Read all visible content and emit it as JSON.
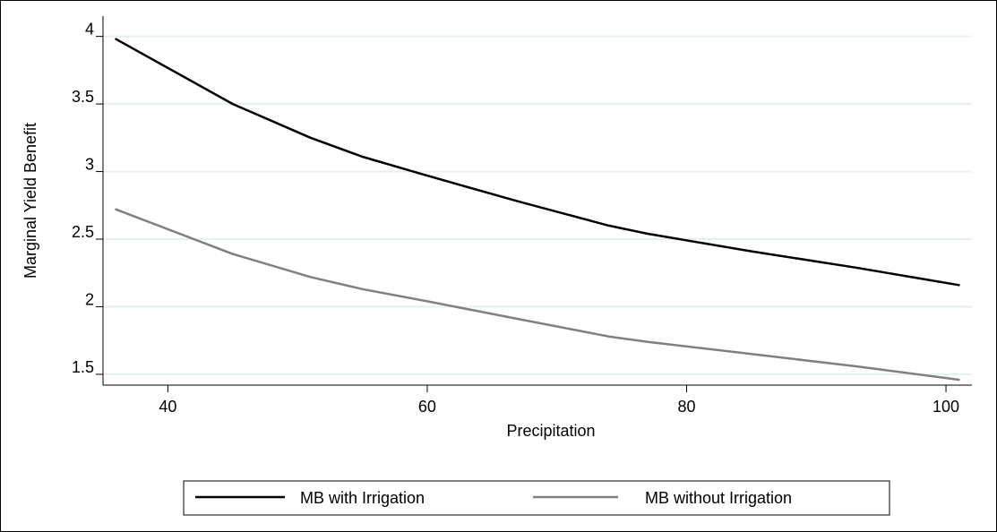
{
  "chart_data": {
    "type": "line",
    "xlabel": "Precipitation",
    "ylabel": "Marginal Yield Benefit",
    "xlim": [
      35,
      102
    ],
    "ylim": [
      1.42,
      4.15
    ],
    "xticks": [
      40,
      60,
      80,
      100
    ],
    "yticks": [
      1.5,
      2,
      2.5,
      3,
      3.5,
      4
    ],
    "xtick_labels": [
      "40",
      "60",
      "80",
      "100"
    ],
    "ytick_labels": [
      "1.5",
      "2",
      "2.5",
      "3",
      "3.5",
      "4"
    ],
    "grid": true,
    "legend_position": "bottom",
    "series": [
      {
        "name": "MB with Irrigation",
        "color": "#000000",
        "x": [
          36,
          45,
          51,
          55,
          60,
          67,
          74,
          77,
          85,
          93,
          101
        ],
        "y": [
          3.98,
          3.5,
          3.25,
          3.11,
          2.97,
          2.78,
          2.6,
          2.54,
          2.41,
          2.29,
          2.16
        ]
      },
      {
        "name": "MB without Irrigation",
        "color": "#808080",
        "x": [
          36,
          45,
          51,
          55,
          60,
          67,
          74,
          77,
          85,
          93,
          101
        ],
        "y": [
          2.72,
          2.39,
          2.22,
          2.13,
          2.04,
          1.91,
          1.78,
          1.74,
          1.65,
          1.56,
          1.46
        ]
      }
    ]
  }
}
